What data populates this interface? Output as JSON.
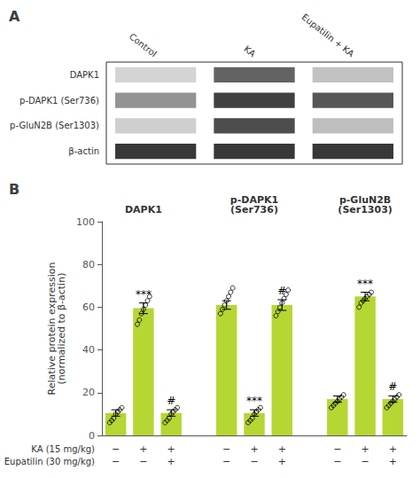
{
  "chart_data": [
    {
      "type": "heatmap",
      "title": "A",
      "categories": [
        "Control",
        "KA",
        "Eupatilin + KA"
      ],
      "rows": [
        "DAPK1",
        "p-DAPK1 (Ser736)",
        "p-GluN2B (Ser1303)",
        "β-actin"
      ],
      "cells": [
        [
          0.2,
          0.72,
          0.28
        ],
        [
          0.5,
          0.88,
          0.78
        ],
        [
          0.22,
          0.82,
          0.3
        ],
        [
          0.92,
          0.92,
          0.92
        ]
      ]
    },
    {
      "type": "bar",
      "title": "B",
      "groups": [
        "DAPK1",
        "p-DAPK1\n(Ser736)",
        "p-GluN2B\n(Ser1303)"
      ],
      "values": [
        [
          10.5,
          59.5,
          10.5
        ],
        [
          61.0,
          10.5,
          61.0
        ],
        [
          17.0,
          65.0,
          17.0
        ]
      ],
      "errors": [
        [
          1.5,
          2.5,
          1.5
        ],
        [
          2.0,
          1.5,
          2.5
        ],
        [
          1.5,
          2.0,
          1.5
        ]
      ],
      "points": [
        [
          [
            6,
            7,
            8,
            10,
            11,
            12,
            13
          ],
          [
            52,
            54,
            57,
            59,
            61,
            63,
            65
          ],
          [
            6,
            7,
            8,
            10,
            11,
            12,
            13
          ]
        ],
        [
          [
            57,
            59,
            61,
            63,
            65,
            67,
            69
          ],
          [
            6,
            7,
            8,
            10,
            11,
            12,
            13
          ],
          [
            56,
            58,
            60,
            62,
            64,
            66,
            68
          ]
        ],
        [
          [
            13,
            14,
            15,
            16,
            17,
            18,
            19
          ],
          [
            60,
            62,
            63,
            64,
            65,
            66,
            67
          ],
          [
            13,
            14,
            15,
            16,
            17,
            18,
            19
          ]
        ]
      ],
      "significance": [
        [
          null,
          "***",
          "#"
        ],
        [
          null,
          "***",
          "#"
        ],
        [
          null,
          "***",
          "#"
        ]
      ],
      "annotation_rows": [
        {
          "label": "KA (15 mg/kg)",
          "values": [
            "−",
            "+",
            "+",
            "−",
            "+",
            "+",
            "−",
            "+",
            "+"
          ]
        },
        {
          "label": "Eupatilin (30 mg/kg)",
          "values": [
            "−",
            "−",
            "+",
            "−",
            "−",
            "+",
            "−",
            "−",
            "+"
          ]
        }
      ],
      "ylabel": "Relative protein expression\n(normalized to β-actin)",
      "ylim": [
        0,
        100
      ],
      "yticks": [
        0,
        20,
        40,
        60,
        80,
        100
      ],
      "grid": false
    }
  ]
}
